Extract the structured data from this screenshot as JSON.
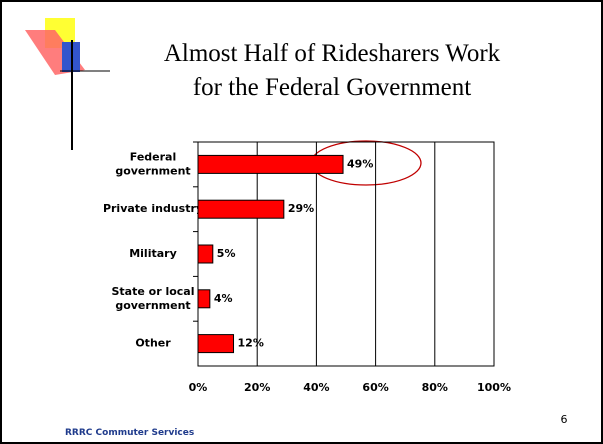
{
  "chart_data": {
    "type": "bar",
    "orientation": "horizontal",
    "title": "Almost Half of Ridesharers Work for the Federal Government",
    "categories": [
      "Federal government",
      "Private industry",
      "Military",
      "State or local government",
      "Other"
    ],
    "values": [
      49,
      29,
      5,
      4,
      12
    ],
    "value_labels": [
      "49%",
      "29%",
      "5%",
      "4%",
      "12%"
    ],
    "color": "#ff0000",
    "xlim": [
      0,
      100
    ],
    "xticks": [
      {
        "value": 0,
        "label": "0%"
      },
      {
        "value": 20,
        "label": "20%"
      },
      {
        "value": 40,
        "label": "40%"
      },
      {
        "value": 60,
        "label": "60%"
      },
      {
        "value": 80,
        "label": "80%"
      },
      {
        "value": 100,
        "label": "100%"
      }
    ],
    "grid": true
  },
  "footer": "RRRC Commuter Services",
  "page_number": "6"
}
